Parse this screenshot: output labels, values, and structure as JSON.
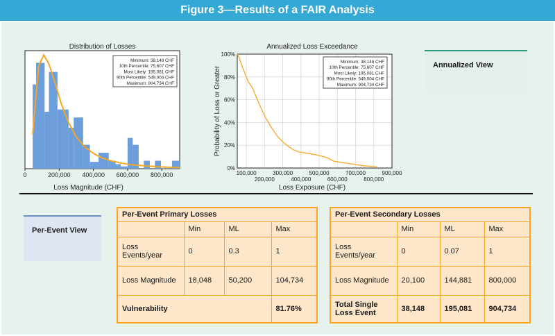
{
  "title": "Figure 3—Results of a FAIR Analysis",
  "annualized_view": {
    "label": "Annualized View"
  },
  "per_event_view": {
    "label": "Per-Event View"
  },
  "chart_data": [
    {
      "type": "bar",
      "title": "Distribution of Losses",
      "xlabel": "Loss Magnitude (CHF)",
      "ylabel": "",
      "x_ticks": [
        0,
        200000,
        400000,
        600000,
        800000
      ],
      "x_tick_labels": [
        "0",
        "200,000",
        "400,000",
        "600,000",
        "800,000"
      ],
      "xlim": [
        0,
        904734
      ],
      "bins": [
        {
          "x0": 45000,
          "x1": 65000,
          "value": 0.74
        },
        {
          "x0": 65000,
          "x1": 115000,
          "value": 0.93
        },
        {
          "x0": 115000,
          "x1": 140000,
          "value": 0.5
        },
        {
          "x0": 140000,
          "x1": 190000,
          "value": 0.85
        },
        {
          "x0": 190000,
          "x1": 255000,
          "value": 0.52
        },
        {
          "x0": 255000,
          "x1": 285000,
          "value": 0.36
        },
        {
          "x0": 285000,
          "x1": 340000,
          "value": 0.45
        },
        {
          "x0": 340000,
          "x1": 380000,
          "value": 0.21
        },
        {
          "x0": 380000,
          "x1": 430000,
          "value": 0.06
        },
        {
          "x0": 430000,
          "x1": 490000,
          "value": 0.14
        },
        {
          "x0": 490000,
          "x1": 530000,
          "value": 0.07
        },
        {
          "x0": 530000,
          "x1": 560000,
          "value": 0.04
        },
        {
          "x0": 560000,
          "x1": 600000,
          "value": 0.02
        },
        {
          "x0": 600000,
          "x1": 630000,
          "value": 0.27
        },
        {
          "x0": 630000,
          "x1": 665000,
          "value": 0.21
        },
        {
          "x0": 695000,
          "x1": 730000,
          "value": 0.07
        },
        {
          "x0": 760000,
          "x1": 795000,
          "value": 0.07
        },
        {
          "x0": 860000,
          "x1": 904734,
          "value": 0.07
        }
      ],
      "fit_curve": {
        "x": [
          45000,
          80000,
          110000,
          140000,
          175000,
          210000,
          250000,
          300000,
          350000,
          400000,
          450000,
          500000,
          560000,
          620000,
          700000,
          800000,
          904734
        ],
        "y": [
          0.3,
          0.9,
          1.0,
          0.92,
          0.76,
          0.58,
          0.42,
          0.28,
          0.19,
          0.135,
          0.095,
          0.07,
          0.05,
          0.035,
          0.025,
          0.015,
          0.01
        ]
      },
      "stats": [
        "Minimum: 38,148 CHF",
        "10th Percentile: 75,607 CHF",
        "Most Likely: 195,081 CHF",
        "90th Percentile: 549,004 CHF",
        "Maximum: 904,734 CHF"
      ],
      "colors": {
        "bars": "#6b9edb",
        "curve": "#f5a623"
      }
    },
    {
      "type": "line",
      "title": "Annualized Loss Exceedance",
      "xlabel": "Loss Exposure (CHF)",
      "ylabel": "Probability of Loss or Greater",
      "xlim": [
        50000,
        900000
      ],
      "ylim": [
        0,
        100
      ],
      "x_ticks_upper": [
        100000,
        300000,
        500000,
        700000,
        900000
      ],
      "x_tick_labels_upper": [
        "100,000",
        "300,000",
        "500,000",
        "700,000",
        "900,000"
      ],
      "x_ticks_lower": [
        200000,
        400000,
        600000,
        800000
      ],
      "x_tick_labels_lower": [
        "200,000",
        "400,000",
        "600,000",
        "800,000"
      ],
      "y_ticks": [
        0,
        20,
        40,
        60,
        80,
        100
      ],
      "y_tick_labels": [
        "0%",
        "20%",
        "40%",
        "60%",
        "80%",
        "100%"
      ],
      "grid": true,
      "x": [
        50000,
        60000,
        75000,
        90000,
        110000,
        135000,
        160000,
        185000,
        210000,
        240000,
        270000,
        300000,
        330000,
        360000,
        390000,
        430000,
        470000,
        510000,
        545000,
        580000,
        620000,
        660000,
        700000,
        740000,
        780000,
        820000
      ],
      "y": [
        100,
        97,
        90,
        84,
        76,
        70,
        60,
        51,
        43,
        35,
        28,
        23,
        19,
        16,
        14,
        13,
        12,
        10.5,
        9,
        6,
        5,
        4,
        3,
        2,
        1.5,
        1
      ],
      "stats": [
        "Minimum: 38,148 CHF",
        "10th Percentile: 75,607 CHF",
        "Most Likely: 195,081 CHF",
        "90th Percentile: 549,004 CHF",
        "Maximum: 904,734 CHF"
      ],
      "colors": {
        "line": "#f5a623",
        "grid": "#d8d8d8"
      }
    }
  ],
  "primary_table": {
    "title": "Per-Event Primary Losses",
    "headers": [
      "",
      "Min",
      "ML",
      "Max"
    ],
    "rows": [
      [
        "Loss Events/year",
        "0",
        "0.3",
        "1"
      ],
      [
        "Loss Magnitude",
        "18,048",
        "50,200",
        "104,734"
      ]
    ],
    "footer_label": "Vulnerability",
    "footer_value": "81.76%"
  },
  "secondary_table": {
    "title": "Per-Event Secondary Losses",
    "headers": [
      "",
      "Min",
      "ML",
      "Max"
    ],
    "rows": [
      [
        "Loss Events/year",
        "0",
        "0.07",
        "1"
      ],
      [
        "Loss Magnitude",
        "20,100",
        "144,881",
        "800,000"
      ]
    ],
    "footer_label_line1": "Total Single",
    "footer_label_line2": "Loss Event",
    "footer_values": [
      "38,148",
      "195,081",
      "904,734"
    ]
  }
}
